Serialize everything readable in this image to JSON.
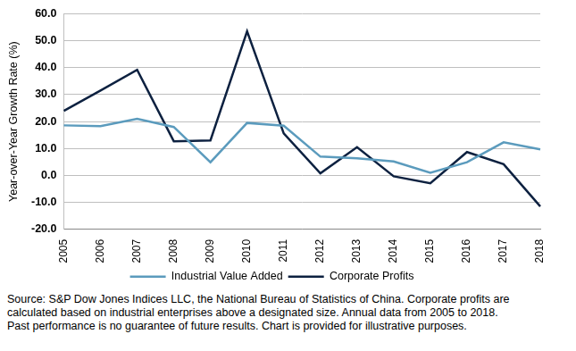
{
  "chart_data": {
    "type": "line",
    "y_label": "Year-over-Year Growth Rate (%)",
    "categories": [
      "2005",
      "2006",
      "2007",
      "2008",
      "2009",
      "2010",
      "2011",
      "2012",
      "2013",
      "2014",
      "2015",
      "2016",
      "2017",
      "2018"
    ],
    "series": [
      {
        "name": "Industrial Value Added",
        "color": "#5b9bbd",
        "values": [
          18.6,
          18.3,
          21.0,
          18.0,
          4.9,
          19.5,
          18.5,
          7.0,
          6.4,
          5.2,
          1.0,
          4.9,
          12.3,
          9.7
        ]
      },
      {
        "name": "Corporate Profits",
        "color": "#0d2140",
        "values": [
          24.0,
          31.5,
          39.2,
          12.7,
          13.0,
          53.5,
          15.6,
          0.8,
          10.5,
          -0.3,
          -2.9,
          8.7,
          4.2,
          -11.5
        ]
      }
    ],
    "ylim": [
      -20,
      60
    ],
    "yticks": [
      {
        "value": -20,
        "label": "-20.0"
      },
      {
        "value": -10,
        "label": "-10.0"
      },
      {
        "value": 0,
        "label": "0.0"
      },
      {
        "value": 10,
        "label": "10.0"
      },
      {
        "value": 20,
        "label": "20.0"
      },
      {
        "value": 30,
        "label": "30.0"
      },
      {
        "value": 40,
        "label": "40.0"
      },
      {
        "value": 50,
        "label": "50.0"
      },
      {
        "value": 60,
        "label": "60.0"
      }
    ],
    "grid": true,
    "legend": "bottom",
    "note": [
      "Source: S&P Dow Jones Indices LLC, the National Bureau of Statistics of China.  Corporate profits are",
      "calculated based on industrial enterprises above a designated size.  Annual data from 2005 to 2018.",
      "Past performance is no guarantee of future results.  Chart is provided for illustrative purposes."
    ]
  }
}
